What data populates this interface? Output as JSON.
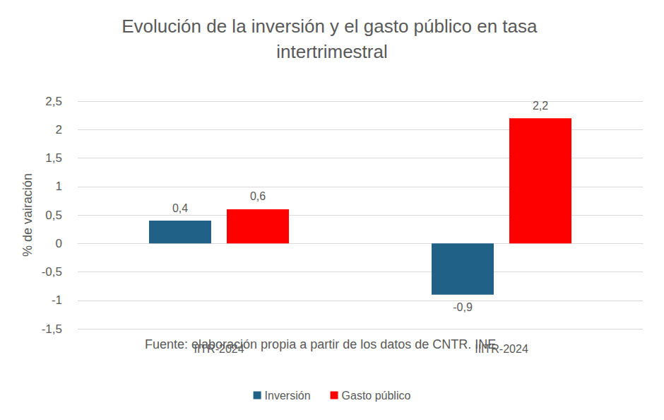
{
  "chart_data": {
    "type": "bar",
    "title": "Evolución de la inversión y el gasto público en tasa intertrimestral",
    "y_label": "% de vairación",
    "source": "Fuente: elaboración propia a partir de los datos de CNTR. INE",
    "categories": [
      "IITR-2024",
      "IIITR-2024"
    ],
    "series": [
      {
        "name": "Inversión",
        "color": "#1f6187",
        "values": [
          0.4,
          -0.9
        ],
        "value_labels": [
          "0,4",
          "-0,9"
        ]
      },
      {
        "name": "Gasto público",
        "color": "#ff0000",
        "values": [
          0.6,
          2.2
        ],
        "value_labels": [
          "0,6",
          "2,2"
        ]
      }
    ],
    "ylim": [
      -1.5,
      2.5
    ],
    "yticks": [
      {
        "value": -1.5,
        "label": "-1,5"
      },
      -1,
      {
        "value": -0.5,
        "label": "-0,5"
      },
      0,
      {
        "value": 0.5,
        "label": "0,5"
      },
      1,
      {
        "value": 1.5,
        "label": "1,5"
      },
      2,
      {
        "value": 2.5,
        "label": "2,5"
      }
    ],
    "grid": true,
    "legend": "bottom",
    "data_labels": true
  }
}
